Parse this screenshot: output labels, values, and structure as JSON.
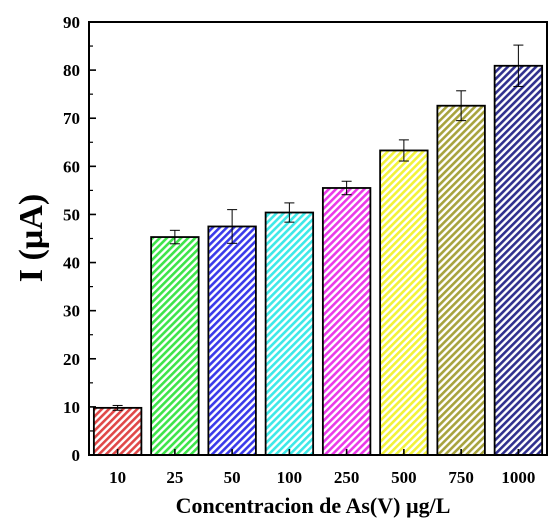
{
  "chart_data": {
    "type": "bar",
    "title": "",
    "xlabel": "Concentracion de As(V) µg/L",
    "ylabel": "I (µA)",
    "ylim": [
      0,
      90
    ],
    "yticks": [
      0,
      10,
      20,
      30,
      40,
      50,
      60,
      70,
      80,
      90
    ],
    "grid": false,
    "legend": "none",
    "categories": [
      "10",
      "25",
      "50",
      "100",
      "250",
      "500",
      "750",
      "1000"
    ],
    "values": [
      9.8,
      45.3,
      47.5,
      50.4,
      55.5,
      63.3,
      72.6,
      80.9
    ],
    "errors": [
      0.5,
      1.4,
      3.5,
      2.0,
      1.4,
      2.2,
      3.1,
      4.3
    ],
    "colors": [
      "#e04848",
      "#3ee44a",
      "#3a3aea",
      "#3ee8e8",
      "#ea3ae8",
      "#f2f23a",
      "#a7a33e",
      "#30308e"
    ],
    "hatch": "diagonal"
  }
}
